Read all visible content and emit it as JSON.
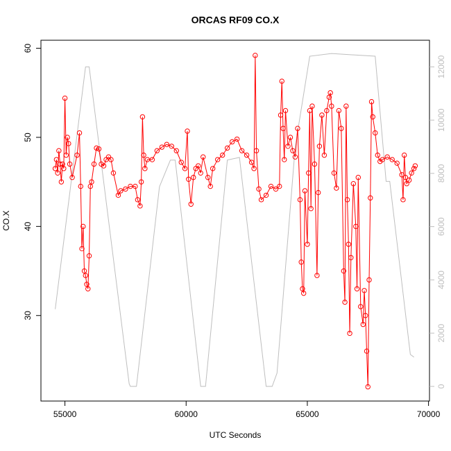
{
  "chart_data": {
    "type": "line",
    "title": "ORCAS RF09 CO.X",
    "x_label": "UTC Seconds",
    "y_label": "CO.X",
    "xlim": [
      54010,
      70040
    ],
    "xticks": [
      55000,
      60000,
      65000,
      70000
    ],
    "ylim": [
      20.4,
      60.9
    ],
    "yticks": [
      30,
      40,
      50,
      60
    ],
    "y2lim": [
      -550,
      13000
    ],
    "y2ticks": [
      0,
      2000,
      4000,
      6000,
      8000,
      10000,
      12000
    ],
    "y2_color": "#bebebe",
    "series": [
      {
        "color": "#bebebe",
        "axis": "y2",
        "marker": "none",
        "x": [
          54600,
          55850,
          56000,
          57650,
          57700,
          57950,
          58900,
          59350,
          59550,
          60600,
          60800,
          61700,
          62200,
          63300,
          63550,
          63750,
          64500,
          65100,
          66000,
          67800,
          68250,
          68400,
          69250,
          69400
        ],
        "values": [
          2900,
          12000,
          12000,
          100,
          0,
          0,
          7500,
          8500,
          8500,
          0,
          0,
          8500,
          8600,
          0,
          0,
          500,
          9000,
          12400,
          12500,
          12400,
          7700,
          7700,
          1200,
          1100
        ]
      },
      {
        "color": "#ff0000",
        "marker": "circle",
        "x": [
          54600,
          54650,
          54700,
          54750,
          54800,
          54850,
          54900,
          54950,
          55000,
          55050,
          55100,
          55150,
          55200,
          55300,
          55500,
          55600,
          55650,
          55700,
          55750,
          55800,
          55850,
          55900,
          55950,
          56000,
          56050,
          56100,
          56200,
          56300,
          56400,
          56500,
          56600,
          56700,
          56800,
          56900,
          57000,
          57200,
          57300,
          57500,
          57700,
          57900,
          58000,
          58100,
          58150,
          58200,
          58250,
          58300,
          58400,
          58600,
          58800,
          59000,
          59200,
          59400,
          59600,
          59800,
          59950,
          60050,
          60100,
          60200,
          60300,
          60400,
          60500,
          60600,
          60700,
          60900,
          61000,
          61100,
          61300,
          61500,
          61700,
          61900,
          62100,
          62300,
          62500,
          62700,
          62800,
          62850,
          62900,
          63000,
          63100,
          63300,
          63500,
          63700,
          63850,
          63900,
          63950,
          64000,
          64050,
          64100,
          64200,
          64300,
          64400,
          64500,
          64600,
          64700,
          64750,
          64800,
          64850,
          64900,
          65000,
          65050,
          65100,
          65150,
          65200,
          65300,
          65400,
          65450,
          65500,
          65600,
          65700,
          65800,
          65900,
          65950,
          66000,
          66100,
          66200,
          66300,
          66400,
          66500,
          66550,
          66600,
          66650,
          66700,
          66750,
          66800,
          66900,
          67000,
          67050,
          67100,
          67200,
          67300,
          67350,
          67400,
          67450,
          67500,
          67550,
          67600,
          67650,
          67700,
          67800,
          67900,
          68000,
          68100,
          68300,
          68500,
          68700,
          68900,
          68950,
          69000,
          69050,
          69100,
          69200,
          69300,
          69400,
          69450
        ],
        "values": [
          46.5,
          47.5,
          46,
          48.5,
          47,
          45,
          47,
          46.5,
          54.4,
          48,
          50,
          49.3,
          47,
          45.5,
          48,
          50.5,
          44.5,
          37.5,
          40,
          35,
          34.5,
          33.5,
          33,
          36.7,
          44.5,
          45,
          47,
          48.8,
          48.7,
          47,
          46.8,
          47.5,
          47.8,
          47.5,
          46,
          43.5,
          44,
          44.2,
          44.5,
          44.5,
          43,
          42.3,
          45,
          52.3,
          48,
          46.5,
          47.5,
          47.5,
          48.5,
          48.9,
          49.2,
          49,
          48.5,
          47.2,
          46.5,
          50.7,
          45.3,
          42.5,
          45.5,
          46.5,
          46.8,
          46,
          47.8,
          45.5,
          44.5,
          46.5,
          47.5,
          48,
          48.8,
          49.5,
          49.8,
          48.5,
          48,
          47.2,
          46.5,
          59.2,
          48.5,
          44.2,
          43,
          43.5,
          44.5,
          44.2,
          44.5,
          52.5,
          56.3,
          51,
          47.5,
          53,
          49,
          50,
          48.5,
          47.8,
          51,
          43,
          36,
          33,
          32.5,
          44,
          38,
          46,
          53,
          42,
          53.5,
          47,
          34.5,
          43.8,
          49,
          52.5,
          48,
          53,
          54.5,
          55,
          53.5,
          46,
          44.3,
          53,
          51,
          35,
          31.5,
          53.5,
          43,
          38,
          28,
          36.5,
          44.8,
          40,
          33,
          45.5,
          31,
          29,
          32.8,
          30,
          26,
          22,
          34,
          43.2,
          54,
          52.3,
          50.5,
          48,
          47.3,
          47.5,
          47.8,
          47.5,
          47.1,
          45.8,
          43,
          48,
          45.5,
          44.8,
          45.2,
          46,
          46.5,
          46.8
        ]
      }
    ]
  }
}
